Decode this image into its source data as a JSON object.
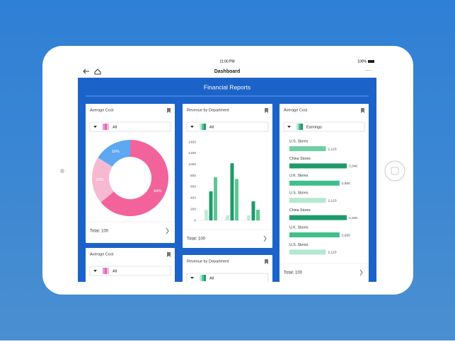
{
  "status_bar": {
    "time": "11:00 PM",
    "battery": "100%"
  },
  "nav": {
    "title": "Dashboard"
  },
  "header": {
    "title": "Financial Reports"
  },
  "donut_card": {
    "title": "Average Cost",
    "filter": "All",
    "total": "Total: 100",
    "chart": {
      "type": "pie",
      "values": [
        64,
        20,
        16
      ],
      "value_labels": [
        "64%",
        "20%",
        "16%"
      ],
      "colors": [
        "#f2639c",
        "#f7b9d2",
        "#5da8f0"
      ]
    }
  },
  "bar_card": {
    "title": "Revenue by Department",
    "filter": "All",
    "total": "Total: 100",
    "chart": {
      "type": "bar",
      "categories": [
        null,
        null,
        null
      ],
      "ylim": [
        0,
        1400
      ],
      "yticks": [
        0,
        200,
        400,
        600,
        800,
        1000,
        1200,
        1400
      ],
      "series": [
        {
          "color": "#c3ebd9",
          "values": [
            190,
            90,
            90
          ]
        },
        {
          "color": "#1f9b6a",
          "values": [
            520,
            1020,
            340
          ]
        },
        {
          "color": "#5cc794",
          "values": [
            770,
            740,
            190
          ]
        }
      ]
    }
  },
  "hbar_card": {
    "title": "Average Cost",
    "filter": "Earnings",
    "total": "Total: 100",
    "chart": {
      "type": "hbar",
      "categories": [
        "U.S. Stores",
        "China Stores",
        "U.K. Stores",
        "U.S. Stores",
        "China Stores",
        "U.K. Stores",
        "U.S. Stores"
      ],
      "values": [
        2123,
        3340,
        2920,
        2123,
        3340,
        2920,
        2123
      ],
      "value_labels": [
        "2,123",
        "3,340",
        "2,920",
        "2,123",
        "3,340",
        "2,920",
        "2,123"
      ],
      "colors": [
        "#6fcfa4",
        "#1f9b6a",
        "#3fbf8a",
        "#b5e8d2",
        "#1f9b6a",
        "#3fbf8a",
        "#b5e8d2"
      ]
    }
  },
  "lower_cards": [
    {
      "title": "Average Cost",
      "filter": "All"
    },
    {
      "title": "Revenue by Department",
      "filter": "All"
    }
  ]
}
